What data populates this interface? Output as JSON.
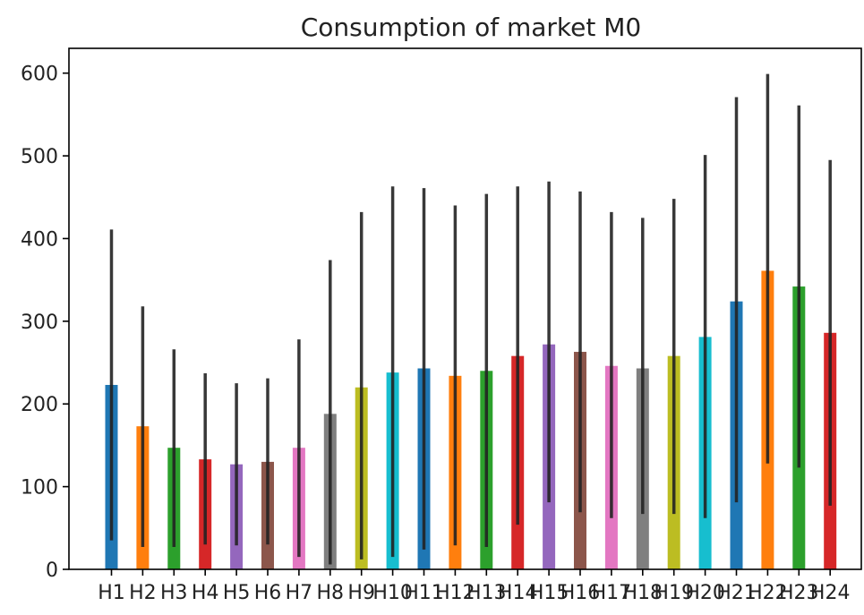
{
  "chart_data": {
    "type": "bar",
    "title": "Consumption of market M0",
    "xlabel": "",
    "ylabel": "",
    "ylim": [
      0,
      630
    ],
    "yticks": [
      0,
      100,
      200,
      300,
      400,
      500,
      600
    ],
    "categories": [
      "H1",
      "H2",
      "H3",
      "H4",
      "H5",
      "H6",
      "H7",
      "H8",
      "H9",
      "H10",
      "H11",
      "H12",
      "H13",
      "H14",
      "H15",
      "H16",
      "H17",
      "H18",
      "H19",
      "H20",
      "H21",
      "H22",
      "H23",
      "H24"
    ],
    "values": [
      223,
      173,
      147,
      133,
      127,
      130,
      147,
      188,
      220,
      238,
      243,
      234,
      240,
      258,
      272,
      263,
      246,
      243,
      258,
      281,
      324,
      361,
      342,
      286
    ],
    "error_low": [
      35,
      27,
      27,
      30,
      29,
      30,
      15,
      6,
      12,
      15,
      24,
      29,
      27,
      54,
      81,
      69,
      62,
      67,
      67,
      62,
      81,
      128,
      123,
      77
    ],
    "error_high": [
      411,
      318,
      266,
      237,
      225,
      231,
      278,
      374,
      432,
      463,
      461,
      440,
      454,
      463,
      469,
      457,
      432,
      425,
      448,
      501,
      571,
      599,
      561,
      495
    ],
    "colors": [
      "#1f77b4",
      "#ff7f0e",
      "#2ca02c",
      "#d62728",
      "#9467bd",
      "#8c564b",
      "#e377c2",
      "#7f7f7f",
      "#bcbd22",
      "#17becf",
      "#1f77b4",
      "#ff7f0e",
      "#2ca02c",
      "#d62728",
      "#9467bd",
      "#8c564b",
      "#e377c2",
      "#7f7f7f",
      "#bcbd22",
      "#17becf",
      "#1f77b4",
      "#ff7f0e",
      "#2ca02c",
      "#d62728"
    ],
    "error_color": "#222222",
    "grid": false,
    "legend": "none"
  }
}
